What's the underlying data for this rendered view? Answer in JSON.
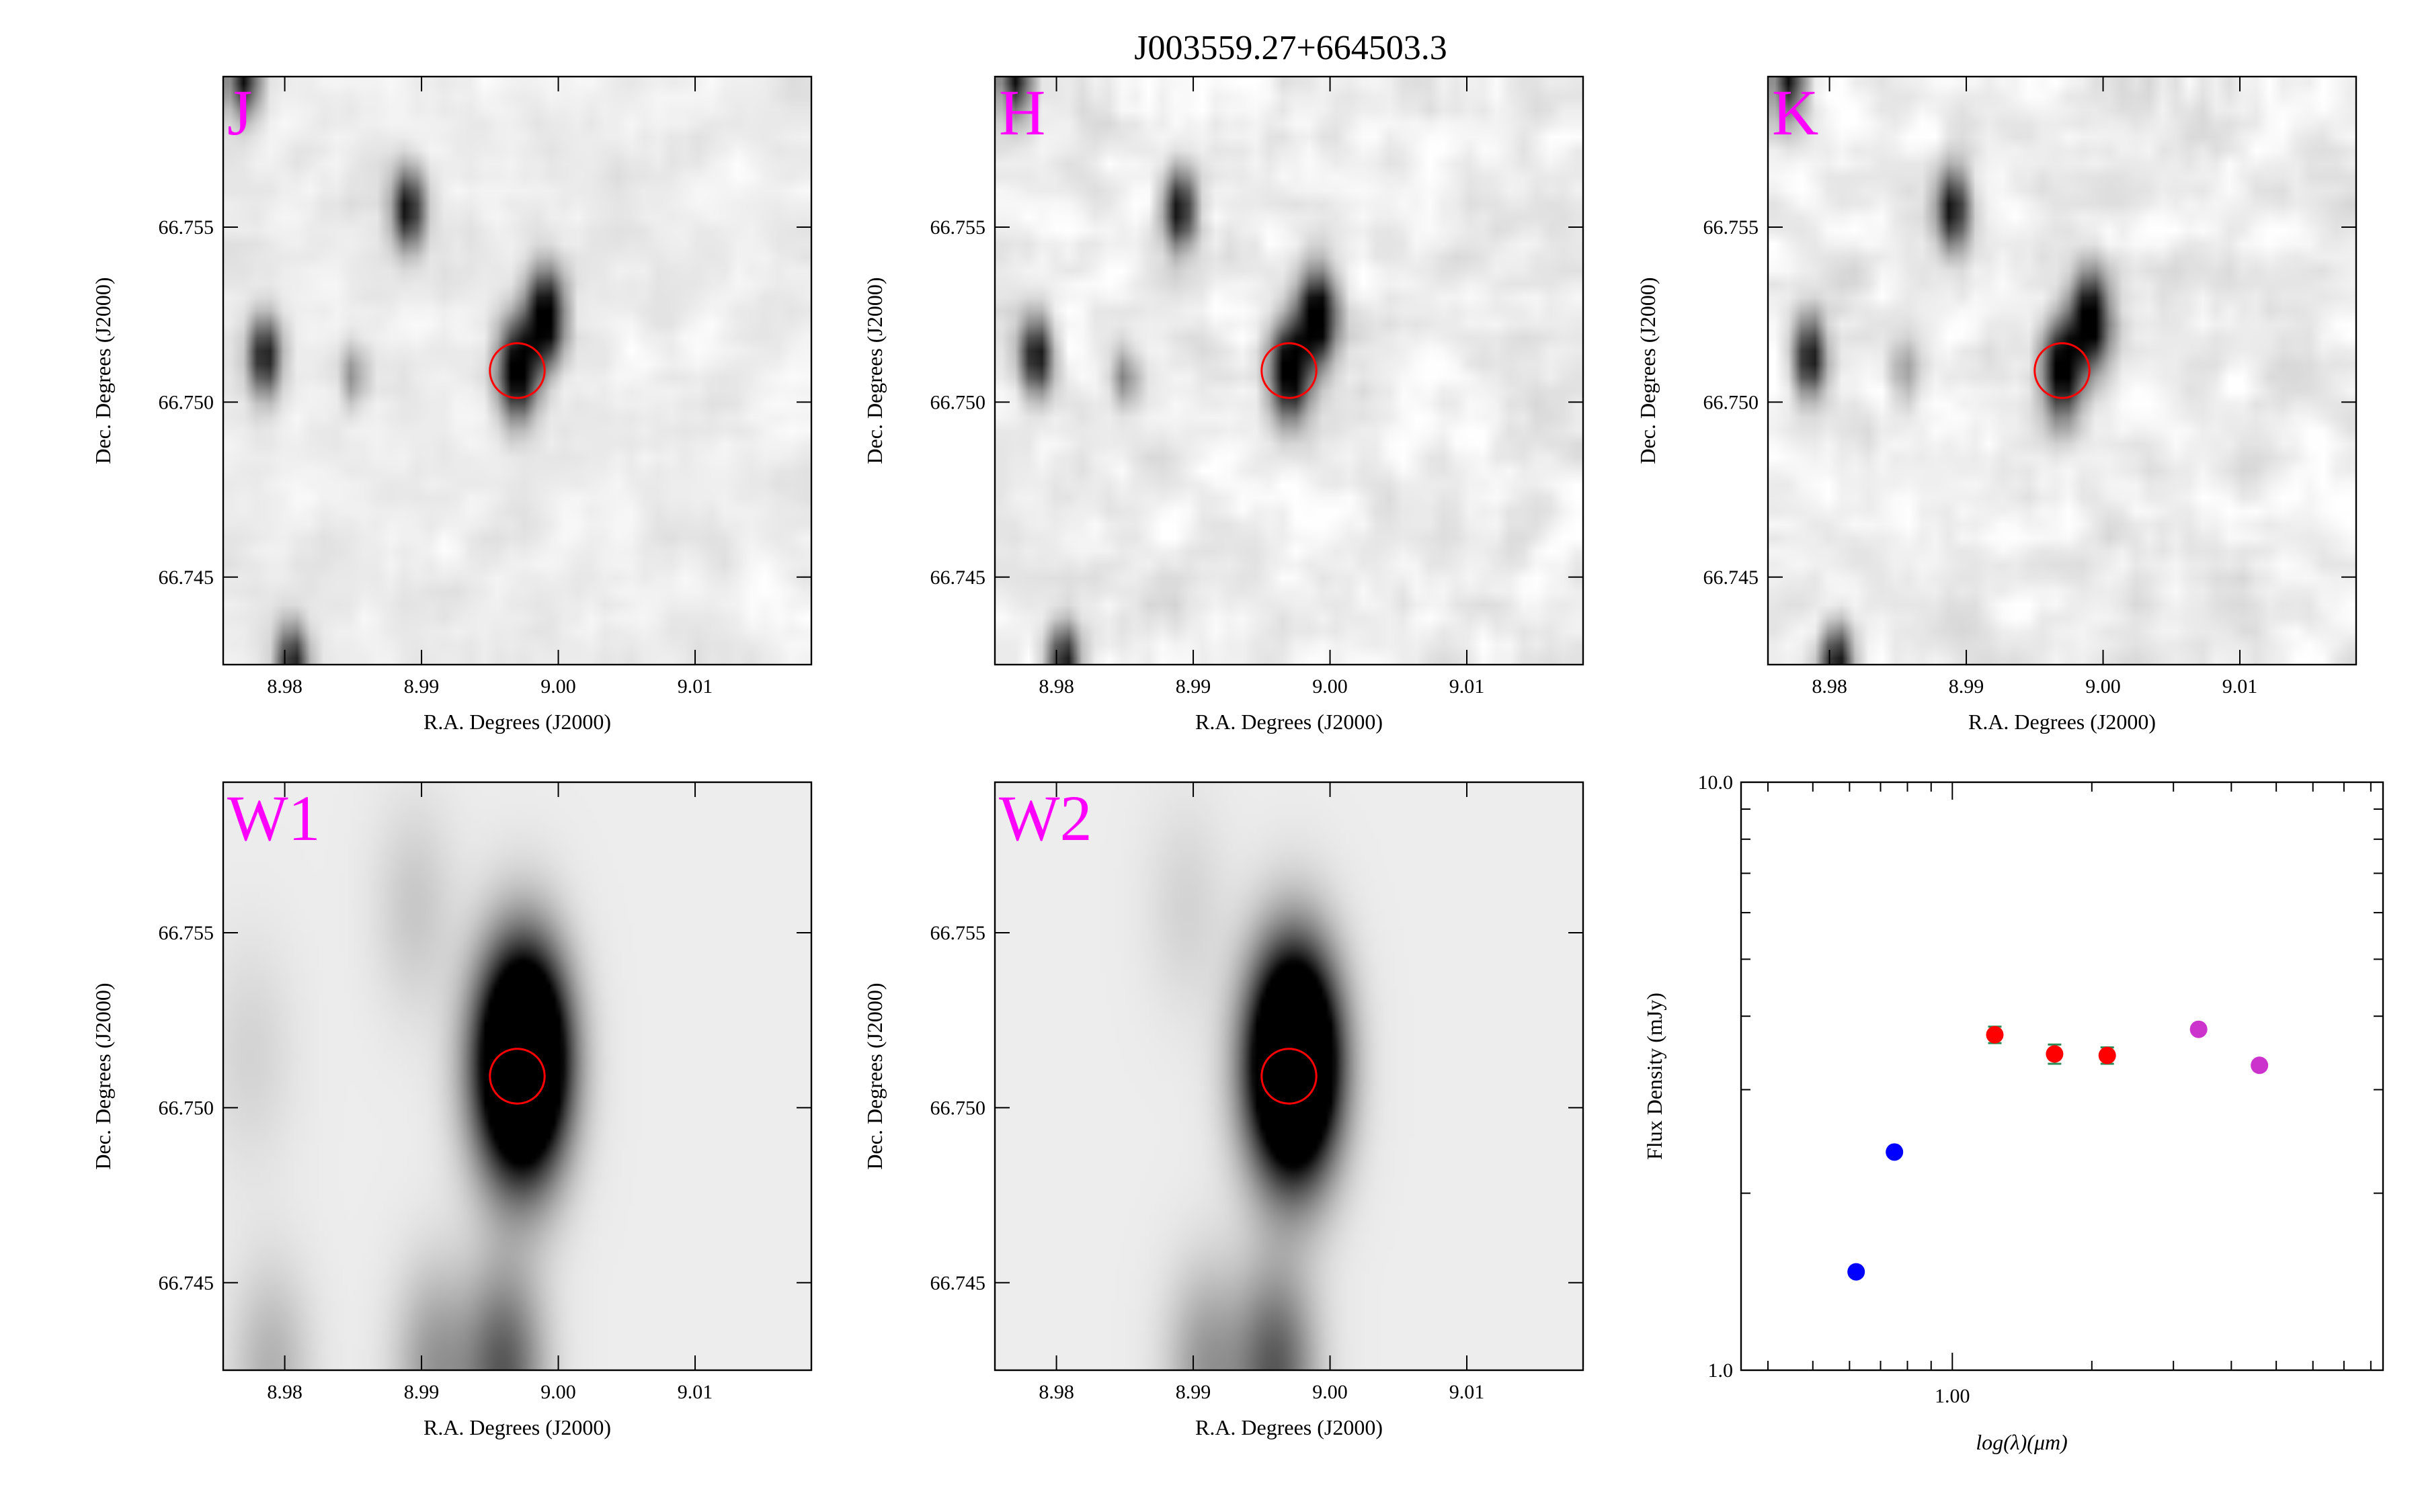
{
  "title": "J003559.27+664503.3",
  "image_axes": {
    "xlabel": "R.A. Degrees (J2000)",
    "ylabel": "Dec. Degrees (J2000)",
    "xlim": [
      8.9755,
      9.0185
    ],
    "ylim": [
      66.7425,
      66.7593
    ],
    "xticks": [
      8.98,
      8.99,
      9.0,
      9.01
    ],
    "xtick_labels": [
      "8.98",
      "8.99",
      "9.00",
      "9.01"
    ],
    "yticks": [
      66.745,
      66.75,
      66.755
    ],
    "ytick_labels": [
      "66.745",
      "66.750",
      "66.755"
    ]
  },
  "colors": {
    "band_label": "#ff00ff",
    "aperture": "#ff0000",
    "sed_optical": "#0000ff",
    "sed_2mass": "#ff0000",
    "sed_wise": "#cc33cc",
    "errorbar": "#2e8b57"
  },
  "target": {
    "ra": 8.997,
    "dec": 66.7509,
    "aperture_radius_deg": 0.002
  },
  "images": [
    {
      "band": "J",
      "type": "2mass",
      "noise_seed": 11,
      "noise_amp": 0.16,
      "sources": [
        {
          "ra": 8.977,
          "dec": 66.7593,
          "amp": 0.95,
          "sig": 0.00075
        },
        {
          "ra": 8.989,
          "dec": 66.7555,
          "amp": 0.95,
          "sig": 0.00075
        },
        {
          "ra": 8.999,
          "dec": 66.7524,
          "amp": 1.2,
          "sig": 0.0009
        },
        {
          "ra": 8.997,
          "dec": 66.7509,
          "amp": 1.2,
          "sig": 0.0009
        },
        {
          "ra": 8.9785,
          "dec": 66.7513,
          "amp": 0.95,
          "sig": 0.00075
        },
        {
          "ra": 8.985,
          "dec": 66.7507,
          "amp": 0.35,
          "sig": 0.0006
        },
        {
          "ra": 8.9805,
          "dec": 66.7425,
          "amp": 0.95,
          "sig": 0.00075
        }
      ]
    },
    {
      "band": "H",
      "type": "2mass",
      "noise_seed": 23,
      "noise_amp": 0.24,
      "sources": [
        {
          "ra": 8.977,
          "dec": 66.7593,
          "amp": 0.95,
          "sig": 0.00075
        },
        {
          "ra": 8.989,
          "dec": 66.7555,
          "amp": 0.95,
          "sig": 0.00075
        },
        {
          "ra": 8.999,
          "dec": 66.7524,
          "amp": 1.2,
          "sig": 0.0009
        },
        {
          "ra": 8.997,
          "dec": 66.7509,
          "amp": 1.2,
          "sig": 0.0009
        },
        {
          "ra": 8.9785,
          "dec": 66.7513,
          "amp": 0.95,
          "sig": 0.00075
        },
        {
          "ra": 8.985,
          "dec": 66.7507,
          "amp": 0.4,
          "sig": 0.0006
        },
        {
          "ra": 8.9805,
          "dec": 66.7425,
          "amp": 0.95,
          "sig": 0.00075
        }
      ]
    },
    {
      "band": "K",
      "type": "2mass",
      "noise_seed": 37,
      "noise_amp": 0.26,
      "sources": [
        {
          "ra": 8.977,
          "dec": 66.7593,
          "amp": 0.95,
          "sig": 0.00075
        },
        {
          "ra": 8.989,
          "dec": 66.7555,
          "amp": 0.95,
          "sig": 0.00075
        },
        {
          "ra": 8.999,
          "dec": 66.7524,
          "amp": 1.2,
          "sig": 0.0009
        },
        {
          "ra": 8.997,
          "dec": 66.7509,
          "amp": 1.2,
          "sig": 0.0009
        },
        {
          "ra": 8.9785,
          "dec": 66.7513,
          "amp": 0.95,
          "sig": 0.00075
        },
        {
          "ra": 8.9855,
          "dec": 66.7508,
          "amp": 0.3,
          "sig": 0.0007
        },
        {
          "ra": 8.9805,
          "dec": 66.7425,
          "amp": 0.95,
          "sig": 0.00075
        }
      ]
    },
    {
      "band": "W1",
      "type": "wise",
      "noise_seed": 5,
      "noise_amp": 0.0,
      "sources": [
        {
          "ra": 8.9972,
          "dec": 66.7512,
          "amp": 1.9,
          "sig": 0.0022
        },
        {
          "ra": 8.998,
          "dec": 66.7516,
          "amp": 0.6,
          "sig": 0.0018
        },
        {
          "ra": 8.9895,
          "dec": 66.7557,
          "amp": 0.12,
          "sig": 0.002
        },
        {
          "ra": 8.9775,
          "dec": 66.7515,
          "amp": 0.08,
          "sig": 0.0022
        },
        {
          "ra": 8.996,
          "dec": 66.7425,
          "amp": 0.55,
          "sig": 0.002
        },
        {
          "ra": 8.991,
          "dec": 66.7425,
          "amp": 0.3,
          "sig": 0.002
        },
        {
          "ra": 8.979,
          "dec": 66.7425,
          "amp": 0.2,
          "sig": 0.002
        }
      ]
    },
    {
      "band": "W2",
      "type": "wise",
      "noise_seed": 9,
      "noise_amp": 0.0,
      "sources": [
        {
          "ra": 8.9972,
          "dec": 66.7512,
          "amp": 1.9,
          "sig": 0.0022
        },
        {
          "ra": 8.9978,
          "dec": 66.7514,
          "amp": 0.6,
          "sig": 0.0018
        },
        {
          "ra": 8.9895,
          "dec": 66.7557,
          "amp": 0.08,
          "sig": 0.002
        },
        {
          "ra": 8.996,
          "dec": 66.7425,
          "amp": 0.55,
          "sig": 0.002
        },
        {
          "ra": 8.991,
          "dec": 66.7425,
          "amp": 0.3,
          "sig": 0.002
        }
      ]
    }
  ],
  "chart_data": {
    "type": "scatter",
    "title": "",
    "xlabel": "log(λ)(μm)",
    "ylabel": "Flux Density (mJy)",
    "xscale": "log",
    "yscale": "log",
    "xlim": [
      0.35,
      8.5
    ],
    "ylim": [
      1.0,
      10.0
    ],
    "xticks": [
      1.0
    ],
    "xtick_labels": [
      "1.00"
    ],
    "yticks": [
      1.0,
      10.0
    ],
    "ytick_labels": [
      "1.0",
      "10.0"
    ],
    "grid": false,
    "legend": "none",
    "series": [
      {
        "color": "#0000ff",
        "x": [
          0.62,
          0.75
        ],
        "y": [
          1.47,
          2.35
        ],
        "yerr": [
          0,
          0
        ]
      },
      {
        "color": "#ff0000",
        "x": [
          1.235,
          1.662,
          2.159
        ],
        "y": [
          3.72,
          3.45,
          3.43
        ],
        "yerr": [
          0.12,
          0.13,
          0.11
        ]
      },
      {
        "color": "#cc33cc",
        "x": [
          3.4,
          4.6
        ],
        "y": [
          3.8,
          3.3
        ],
        "yerr": [
          0.06,
          0.06
        ]
      }
    ]
  }
}
